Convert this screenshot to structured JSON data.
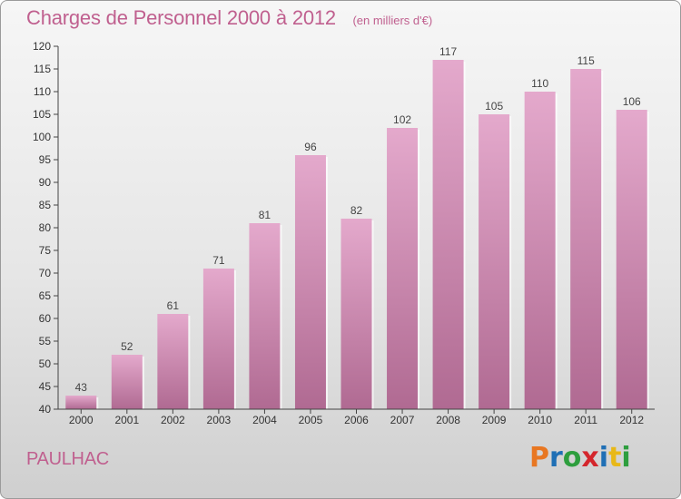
{
  "header": {
    "title": "Charges de Personnel 2000 à 2012",
    "subtitle": "(en milliers d'€)"
  },
  "footer": {
    "commune": "PAULHAC",
    "logo_text": "Proxiti",
    "logo_colors": [
      "#e87722",
      "#1f6fb5",
      "#2e9e3e",
      "#d4262c",
      "#1f6fb5",
      "#e8b818",
      "#2e9e3e"
    ]
  },
  "colors": {
    "bar_top": "#e4a9cc",
    "bar_bottom": "#b06a92",
    "title": "#c0608f"
  },
  "chart_data": {
    "type": "bar",
    "title": "Charges de Personnel 2000 à 2012",
    "subtitle": "(en milliers d'€)",
    "categories": [
      "2000",
      "2001",
      "2002",
      "2003",
      "2004",
      "2005",
      "2006",
      "2007",
      "2008",
      "2009",
      "2010",
      "2011",
      "2012"
    ],
    "values": [
      43,
      52,
      61,
      71,
      81,
      96,
      82,
      102,
      117,
      105,
      110,
      115,
      106
    ],
    "ylim": [
      40,
      120
    ],
    "yticks": [
      40,
      45,
      50,
      55,
      60,
      65,
      70,
      75,
      80,
      85,
      90,
      95,
      100,
      105,
      110,
      115,
      120
    ],
    "grid": false,
    "data_labels": true
  }
}
